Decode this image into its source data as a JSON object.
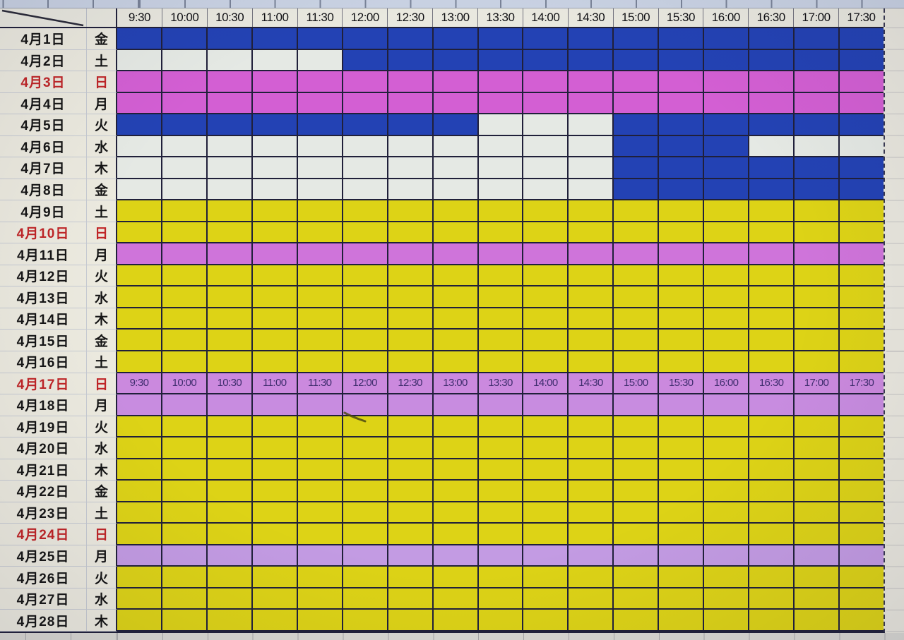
{
  "colors": {
    "blue": "#2342b4",
    "white": "#e5e9e4",
    "pink": "#d35fd3",
    "pink_mid": "#cf74da",
    "pink_label": "#cb89de",
    "pink_light": "#c88ce0",
    "pink_lighter": "#c39be3",
    "yellow": "#ddd316",
    "grid_line": "#20203a",
    "header_bg": "#e9e8df",
    "label_bg": "#eceadf",
    "red_date_text": "#c02527",
    "black_text": "#151515",
    "inline_time_text": "#3f2d6e"
  },
  "header": {
    "times": [
      "9:30",
      "10:00",
      "10:30",
      "11:00",
      "11:30",
      "12:00",
      "12:30",
      "13:00",
      "13:30",
      "14:00",
      "14:30",
      "15:00",
      "15:30",
      "16:00",
      "16:30",
      "17:00",
      "17:30"
    ]
  },
  "rows": [
    {
      "date": "4月1日",
      "weekday": "金",
      "red": false,
      "cells": [
        [
          "blue",
          17
        ]
      ]
    },
    {
      "date": "4月2日",
      "weekday": "土",
      "red": false,
      "cells": [
        [
          "white",
          5
        ],
        [
          "blue",
          12
        ]
      ]
    },
    {
      "date": "4月3日",
      "weekday": "日",
      "red": true,
      "cells": [
        [
          "pink",
          17
        ]
      ]
    },
    {
      "date": "4月4日",
      "weekday": "月",
      "red": false,
      "cells": [
        [
          "pink",
          17
        ]
      ]
    },
    {
      "date": "4月5日",
      "weekday": "火",
      "red": false,
      "cells": [
        [
          "blue",
          8
        ],
        [
          "white",
          3
        ],
        [
          "blue",
          6
        ]
      ]
    },
    {
      "date": "4月6日",
      "weekday": "水",
      "red": false,
      "cells": [
        [
          "white",
          11
        ],
        [
          "blue",
          3
        ],
        [
          "white",
          3
        ]
      ]
    },
    {
      "date": "4月7日",
      "weekday": "木",
      "red": false,
      "cells": [
        [
          "white",
          11
        ],
        [
          "blue",
          6
        ]
      ]
    },
    {
      "date": "4月8日",
      "weekday": "金",
      "red": false,
      "cells": [
        [
          "white",
          11
        ],
        [
          "blue",
          6
        ]
      ]
    },
    {
      "date": "4月9日",
      "weekday": "土",
      "red": false,
      "cells": [
        [
          "yellow",
          17
        ]
      ]
    },
    {
      "date": "4月10日",
      "weekday": "日",
      "red": true,
      "cells": [
        [
          "yellow",
          17
        ]
      ]
    },
    {
      "date": "4月11日",
      "weekday": "月",
      "red": false,
      "cells": [
        [
          "pink_mid",
          17
        ]
      ]
    },
    {
      "date": "4月12日",
      "weekday": "火",
      "red": false,
      "cells": [
        [
          "yellow",
          17
        ]
      ]
    },
    {
      "date": "4月13日",
      "weekday": "水",
      "red": false,
      "cells": [
        [
          "yellow",
          17
        ]
      ]
    },
    {
      "date": "4月14日",
      "weekday": "木",
      "red": false,
      "cells": [
        [
          "yellow",
          17
        ]
      ]
    },
    {
      "date": "4月15日",
      "weekday": "金",
      "red": false,
      "cells": [
        [
          "yellow",
          17
        ]
      ]
    },
    {
      "date": "4月16日",
      "weekday": "土",
      "red": false,
      "cells": [
        [
          "yellow",
          17
        ]
      ]
    },
    {
      "date": "4月17日",
      "weekday": "日",
      "red": true,
      "cells": [
        [
          "pink_label",
          17
        ]
      ],
      "cell_labels": [
        "9:30",
        "10:00",
        "10:30",
        "11:00",
        "11:30",
        "12:00",
        "12:30",
        "13:00",
        "13:30",
        "14:00",
        "14:30",
        "15:00",
        "15:30",
        "16:00",
        "16:30",
        "17:00",
        "17:30"
      ]
    },
    {
      "date": "4月18日",
      "weekday": "月",
      "red": false,
      "cells": [
        [
          "pink_light",
          17
        ]
      ]
    },
    {
      "date": "4月19日",
      "weekday": "火",
      "red": false,
      "cells": [
        [
          "yellow",
          17
        ]
      ]
    },
    {
      "date": "4月20日",
      "weekday": "水",
      "red": false,
      "cells": [
        [
          "yellow",
          17
        ]
      ]
    },
    {
      "date": "4月21日",
      "weekday": "木",
      "red": false,
      "cells": [
        [
          "yellow",
          17
        ]
      ]
    },
    {
      "date": "4月22日",
      "weekday": "金",
      "red": false,
      "cells": [
        [
          "yellow",
          17
        ]
      ]
    },
    {
      "date": "4月23日",
      "weekday": "土",
      "red": false,
      "cells": [
        [
          "yellow",
          17
        ]
      ]
    },
    {
      "date": "4月24日",
      "weekday": "日",
      "red": true,
      "cells": [
        [
          "yellow",
          17
        ]
      ]
    },
    {
      "date": "4月25日",
      "weekday": "月",
      "red": false,
      "cells": [
        [
          "pink_lighter",
          17
        ]
      ]
    },
    {
      "date": "4月26日",
      "weekday": "火",
      "red": false,
      "cells": [
        [
          "yellow",
          17
        ]
      ]
    },
    {
      "date": "4月27日",
      "weekday": "水",
      "red": false,
      "cells": [
        [
          "yellow",
          17
        ]
      ]
    },
    {
      "date": "4月28日",
      "weekday": "木",
      "red": false,
      "cells": [
        [
          "yellow",
          17
        ]
      ]
    }
  ]
}
